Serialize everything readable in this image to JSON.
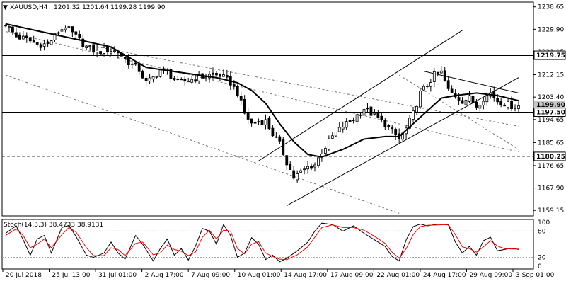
{
  "header": {
    "symbol": "XAUUSD,H4",
    "ohlc": "1201.32 1201.64 1199.28 1199.90",
    "collapse_icon": "triangle-down-icon"
  },
  "indicator": {
    "label": "Stoch(14,3,3) 38.4733 38.9131",
    "levels": [
      "100",
      "80",
      "20",
      "0"
    ]
  },
  "colors": {
    "background": "#ffffff",
    "candles": "#000000",
    "moving_average": "#000000",
    "stoch_main": "#000000",
    "stoch_signal": "#ff0000",
    "level_label_bg": "#ffffff",
    "current_price_bg": "#c8c8c8"
  },
  "chart_data": [
    {
      "type": "candlestick",
      "title": "XAUUSD,H4",
      "x_tick_labels": [
        "20 Jul 2018",
        "25 Jul 13:00",
        "31 Jul 01:00",
        "2 Aug 17:00",
        "7 Aug 09:00",
        "10 Aug 01:00",
        "14 Aug 17:00",
        "17 Aug 09:00",
        "22 Aug 01:00",
        "24 Aug 17:00",
        "29 Aug 09:00",
        "3 Sep 01:00"
      ],
      "y_tick_labels": [
        "1238.65",
        "1229.90",
        "1221.15",
        "1212.15",
        "1203.40",
        "1194.65",
        "1185.65",
        "1176.65",
        "1167.90",
        "1159.15"
      ],
      "ylim": [
        1157.0,
        1240.5
      ],
      "close_path": [
        [
          0,
          1232
        ],
        [
          3,
          1227
        ],
        [
          6,
          1226
        ],
        [
          9,
          1224
        ],
        [
          12,
          1224
        ],
        [
          15,
          1229
        ],
        [
          17,
          1231
        ],
        [
          20,
          1227
        ],
        [
          23,
          1223
        ],
        [
          26,
          1221
        ],
        [
          29,
          1222
        ],
        [
          32,
          1221
        ],
        [
          35,
          1217
        ],
        [
          38,
          1214
        ],
        [
          40,
          1209
        ],
        [
          42,
          1211
        ],
        [
          44,
          1214
        ],
        [
          46,
          1213
        ],
        [
          49,
          1209
        ],
        [
          52,
          1210
        ],
        [
          55,
          1211
        ],
        [
          58,
          1212
        ],
        [
          61,
          1212
        ],
        [
          64,
          1209
        ],
        [
          66,
          1205
        ],
        [
          68,
          1197
        ],
        [
          70,
          1193
        ],
        [
          72,
          1194
        ],
        [
          74,
          1194
        ],
        [
          76,
          1189
        ],
        [
          78,
          1185
        ],
        [
          80,
          1178
        ],
        [
          82,
          1172
        ],
        [
          84,
          1174
        ],
        [
          86,
          1176
        ],
        [
          88,
          1177
        ],
        [
          90,
          1182
        ],
        [
          93,
          1188
        ],
        [
          96,
          1192
        ],
        [
          99,
          1195
        ],
        [
          102,
          1199
        ],
        [
          105,
          1196
        ],
        [
          108,
          1193
        ],
        [
          110,
          1190
        ],
        [
          112,
          1187
        ],
        [
          114,
          1191
        ],
        [
          116,
          1197
        ],
        [
          118,
          1205
        ],
        [
          120,
          1208
        ],
        [
          122,
          1212
        ],
        [
          124,
          1213
        ],
        [
          126,
          1206
        ],
        [
          128,
          1204
        ],
        [
          130,
          1202
        ],
        [
          132,
          1203
        ],
        [
          134,
          1200
        ],
        [
          136,
          1203
        ],
        [
          138,
          1205
        ],
        [
          140,
          1202
        ],
        [
          142,
          1201
        ],
        [
          144,
          1200
        ],
        [
          146,
          1199.9
        ]
      ],
      "ma_path": [
        [
          0,
          1232
        ],
        [
          10,
          1229
        ],
        [
          20,
          1226
        ],
        [
          30,
          1223
        ],
        [
          40,
          1215
        ],
        [
          50,
          1213
        ],
        [
          60,
          1211
        ],
        [
          66,
          1209
        ],
        [
          70,
          1206
        ],
        [
          74,
          1201
        ],
        [
          78,
          1193
        ],
        [
          82,
          1186
        ],
        [
          86,
          1181
        ],
        [
          90,
          1180
        ],
        [
          96,
          1183
        ],
        [
          102,
          1187
        ],
        [
          108,
          1188
        ],
        [
          112,
          1188
        ],
        [
          116,
          1193
        ],
        [
          120,
          1198
        ],
        [
          124,
          1203
        ],
        [
          128,
          1204
        ],
        [
          134,
          1205
        ],
        [
          140,
          1204
        ],
        [
          146,
          1202
        ]
      ],
      "levels": [
        {
          "label": "1219.75",
          "value": 1219.75,
          "style": "solid"
        },
        {
          "label": "1197.50",
          "value": 1197.5,
          "style": "solid"
        },
        {
          "label": "1180.25",
          "value": 1180.25,
          "style": "dashed"
        }
      ],
      "current_price_label": "1199.90",
      "current_price": 1199.9,
      "trendlines": {
        "channel_upper": [
          [
            72,
            1178.5
          ],
          [
            130,
            1229.5
          ]
        ],
        "channel_lower": [
          [
            80,
            1161.0
          ],
          [
            146,
            1211.0
          ]
        ],
        "resistance_solid": [
          [
            119,
            1213.5
          ],
          [
            146,
            1205.0
          ]
        ],
        "dotted_lines": [
          [
            [
              0,
              1229
            ],
            [
              146,
              1182
            ]
          ],
          [
            [
              0,
              1212
            ],
            [
              112,
              1158
            ]
          ],
          [
            [
              26,
              1223
            ],
            [
              146,
              1192
            ]
          ],
          [
            [
              112,
              1212
            ],
            [
              146,
              1183
            ]
          ]
        ]
      }
    },
    {
      "type": "line",
      "title": "Stoch(14,3,3) 38.4733 38.9131",
      "ylim": [
        0,
        100
      ],
      "y_tick_labels": [
        "100",
        "80",
        "20",
        "0"
      ],
      "series": [
        {
          "name": "main",
          "color": "#000000",
          "values": [
            [
              0,
              75
            ],
            [
              3,
              92
            ],
            [
              5,
              60
            ],
            [
              7,
              25
            ],
            [
              9,
              62
            ],
            [
              11,
              70
            ],
            [
              13,
              30
            ],
            [
              16,
              88
            ],
            [
              18,
              93
            ],
            [
              20,
              68
            ],
            [
              23,
              25
            ],
            [
              25,
              20
            ],
            [
              28,
              30
            ],
            [
              30,
              55
            ],
            [
              32,
              30
            ],
            [
              34,
              16
            ],
            [
              37,
              70
            ],
            [
              39,
              50
            ],
            [
              42,
              12
            ],
            [
              44,
              40
            ],
            [
              46,
              62
            ],
            [
              48,
              25
            ],
            [
              50,
              40
            ],
            [
              52,
              14
            ],
            [
              54,
              45
            ],
            [
              56,
              86
            ],
            [
              58,
              80
            ],
            [
              60,
              50
            ],
            [
              62,
              95
            ],
            [
              64,
              70
            ],
            [
              66,
              20
            ],
            [
              68,
              30
            ],
            [
              70,
              65
            ],
            [
              72,
              50
            ],
            [
              74,
              15
            ],
            [
              76,
              25
            ],
            [
              78,
              10
            ],
            [
              80,
              18
            ],
            [
              83,
              35
            ],
            [
              86,
              55
            ],
            [
              88,
              80
            ],
            [
              90,
              98
            ],
            [
              93,
              95
            ],
            [
              96,
              80
            ],
            [
              99,
              92
            ],
            [
              102,
              75
            ],
            [
              105,
              60
            ],
            [
              108,
              45
            ],
            [
              110,
              22
            ],
            [
              112,
              12
            ],
            [
              114,
              60
            ],
            [
              116,
              90
            ],
            [
              118,
              96
            ],
            [
              120,
              92
            ],
            [
              123,
              96
            ],
            [
              126,
              94
            ],
            [
              128,
              55
            ],
            [
              130,
              30
            ],
            [
              132,
              45
            ],
            [
              134,
              25
            ],
            [
              136,
              58
            ],
            [
              138,
              66
            ],
            [
              140,
              35
            ],
            [
              142,
              38
            ],
            [
              144,
              41
            ],
            [
              146,
              38
            ]
          ]
        },
        {
          "name": "signal",
          "color": "#ff0000",
          "values": [
            [
              0,
              70
            ],
            [
              3,
              85
            ],
            [
              5,
              70
            ],
            [
              7,
              42
            ],
            [
              9,
              50
            ],
            [
              11,
              62
            ],
            [
              13,
              42
            ],
            [
              16,
              72
            ],
            [
              18,
              88
            ],
            [
              20,
              78
            ],
            [
              23,
              42
            ],
            [
              25,
              24
            ],
            [
              28,
              24
            ],
            [
              30,
              42
            ],
            [
              32,
              38
            ],
            [
              34,
              24
            ],
            [
              37,
              52
            ],
            [
              39,
              55
            ],
            [
              42,
              26
            ],
            [
              44,
              30
            ],
            [
              46,
              48
            ],
            [
              48,
              38
            ],
            [
              50,
              34
            ],
            [
              52,
              24
            ],
            [
              54,
              32
            ],
            [
              56,
              66
            ],
            [
              58,
              82
            ],
            [
              60,
              62
            ],
            [
              62,
              82
            ],
            [
              64,
              80
            ],
            [
              66,
              40
            ],
            [
              68,
              28
            ],
            [
              70,
              50
            ],
            [
              72,
              56
            ],
            [
              74,
              30
            ],
            [
              76,
              22
            ],
            [
              78,
              16
            ],
            [
              80,
              15
            ],
            [
              83,
              26
            ],
            [
              86,
              44
            ],
            [
              88,
              66
            ],
            [
              90,
              88
            ],
            [
              93,
              94
            ],
            [
              96,
              88
            ],
            [
              99,
              88
            ],
            [
              102,
              82
            ],
            [
              105,
              68
            ],
            [
              108,
              52
            ],
            [
              110,
              32
            ],
            [
              112,
              18
            ],
            [
              114,
              40
            ],
            [
              116,
              72
            ],
            [
              118,
              90
            ],
            [
              120,
              93
            ],
            [
              123,
              94
            ],
            [
              126,
              95
            ],
            [
              128,
              72
            ],
            [
              130,
              44
            ],
            [
              132,
              40
            ],
            [
              134,
              32
            ],
            [
              136,
              44
            ],
            [
              138,
              58
            ],
            [
              140,
              46
            ],
            [
              142,
              40
            ],
            [
              144,
              39
            ],
            [
              146,
              39
            ]
          ]
        }
      ]
    }
  ]
}
